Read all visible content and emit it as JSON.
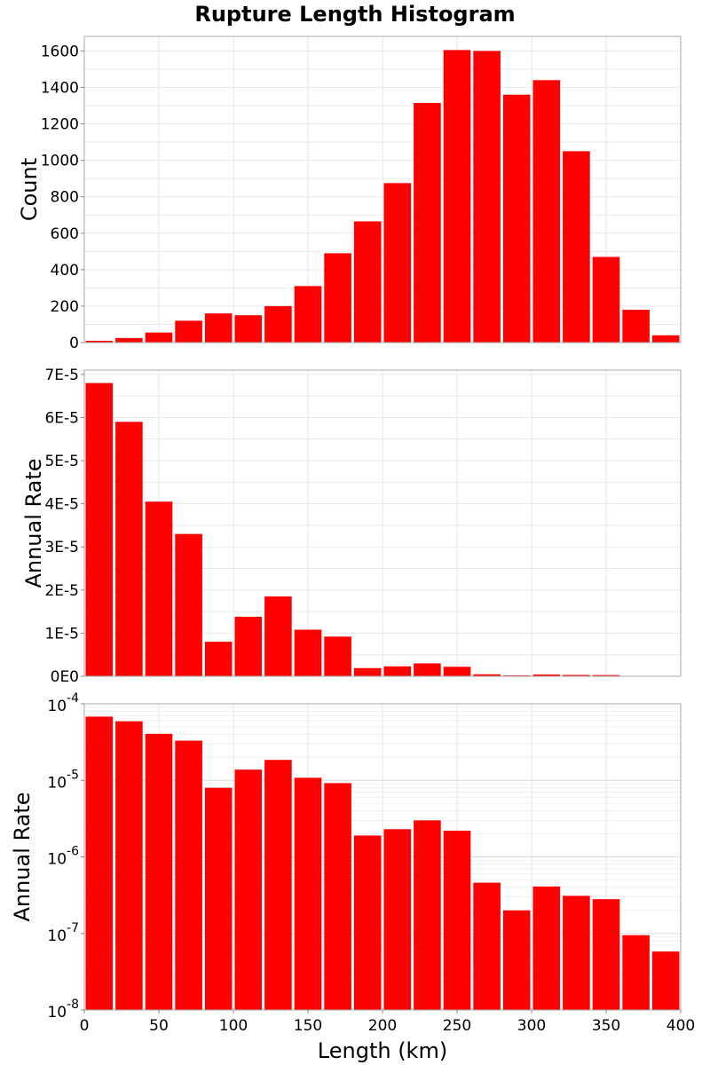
{
  "title": "Rupture Length Histogram",
  "bar_color": "#ff0000",
  "chart_data": [
    {
      "type": "bar",
      "title": "Rupture Length Histogram",
      "xlabel": "Length (km)",
      "ylabel": "Count",
      "bin_width": 20,
      "x": [
        10,
        30,
        50,
        70,
        90,
        110,
        130,
        150,
        170,
        190,
        210,
        230,
        250,
        270,
        290,
        310,
        330,
        350,
        370,
        390
      ],
      "values": [
        10,
        25,
        55,
        120,
        160,
        150,
        200,
        310,
        490,
        665,
        875,
        1315,
        1605,
        1600,
        1360,
        1440,
        1050,
        470,
        180,
        40
      ],
      "xlim": [
        0,
        400
      ],
      "ylim": [
        0,
        1680
      ],
      "yticks": [
        0,
        200,
        400,
        600,
        800,
        1000,
        1200,
        1400,
        1600
      ],
      "ytick_labels": [
        "0",
        "200",
        "400",
        "600",
        "800",
        "1000",
        "1200",
        "1400",
        "1600"
      ],
      "grid": true
    },
    {
      "type": "bar",
      "xlabel": "Length (km)",
      "ylabel": "Annual Rate",
      "bin_width": 20,
      "x": [
        10,
        30,
        50,
        70,
        90,
        110,
        130,
        150,
        170,
        190,
        210,
        230,
        250,
        270,
        290,
        310,
        330,
        350,
        370,
        390
      ],
      "values": [
        6.8e-05,
        5.9e-05,
        4.05e-05,
        3.3e-05,
        8e-06,
        1.38e-05,
        1.85e-05,
        1.08e-05,
        9.2e-06,
        1.9e-06,
        2.3e-06,
        3e-06,
        2.2e-06,
        4.6e-07,
        2e-07,
        4.1e-07,
        3.1e-07,
        2.8e-07,
        9.5e-08,
        5.8e-08
      ],
      "xlim": [
        0,
        400
      ],
      "ylim": [
        0,
        7.1e-05
      ],
      "yticks": [
        0,
        1e-05,
        2e-05,
        3e-05,
        4e-05,
        5e-05,
        6e-05,
        7e-05
      ],
      "ytick_labels": [
        "0E0",
        "1E-5",
        "2E-5",
        "3E-5",
        "4E-5",
        "5E-5",
        "6E-5",
        "7E-5"
      ],
      "grid": true
    },
    {
      "type": "bar",
      "yscale": "log",
      "xlabel": "Length (km)",
      "ylabel": "Annual Rate",
      "bin_width": 20,
      "x": [
        10,
        30,
        50,
        70,
        90,
        110,
        130,
        150,
        170,
        190,
        210,
        230,
        250,
        270,
        290,
        310,
        330,
        350,
        370,
        390
      ],
      "values": [
        6.8e-05,
        5.9e-05,
        4.05e-05,
        3.3e-05,
        8e-06,
        1.38e-05,
        1.85e-05,
        1.08e-05,
        9.2e-06,
        1.9e-06,
        2.3e-06,
        3e-06,
        2.2e-06,
        4.6e-07,
        2e-07,
        4.1e-07,
        3.1e-07,
        2.8e-07,
        9.5e-08,
        5.8e-08
      ],
      "xlim": [
        0,
        400
      ],
      "ylim": [
        1e-08,
        0.0001
      ],
      "yticks": [
        1e-08,
        1e-07,
        1e-06,
        1e-05,
        0.0001
      ],
      "ytick_labels": [
        {
          "base": "10",
          "exp": "-8"
        },
        {
          "base": "10",
          "exp": "-7"
        },
        {
          "base": "10",
          "exp": "-6"
        },
        {
          "base": "10",
          "exp": "-5"
        },
        {
          "base": "10",
          "exp": "-4"
        }
      ],
      "xticks": [
        0,
        50,
        100,
        150,
        200,
        250,
        300,
        350,
        400
      ],
      "xtick_labels": [
        "0",
        "50",
        "100",
        "150",
        "200",
        "250",
        "300",
        "350",
        "400"
      ],
      "grid": true
    }
  ]
}
